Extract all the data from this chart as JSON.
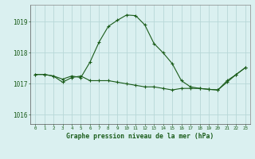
{
  "title": "Graphe pression niveau de la mer (hPa)",
  "background_color": "#daf0f0",
  "plot_bg_color": "#daf0f0",
  "grid_color": "#b8d8d8",
  "line_color": "#1a5c1a",
  "xlim": [
    -0.5,
    23.5
  ],
  "ylim": [
    1015.7,
    1019.55
  ],
  "yticks": [
    1016,
    1017,
    1018,
    1019
  ],
  "xticks": [
    0,
    1,
    2,
    3,
    4,
    5,
    6,
    7,
    8,
    9,
    10,
    11,
    12,
    13,
    14,
    15,
    16,
    17,
    18,
    19,
    20,
    21,
    22,
    23
  ],
  "series1_x": [
    0,
    1,
    2,
    3,
    4,
    5,
    6,
    7,
    8,
    9,
    10,
    11,
    12,
    13,
    14,
    15,
    16,
    17,
    18,
    19,
    20,
    21,
    22,
    23
  ],
  "series1_y": [
    1017.3,
    1017.3,
    1017.25,
    1017.15,
    1017.25,
    1017.2,
    1017.7,
    1018.35,
    1018.85,
    1019.05,
    1019.22,
    1019.2,
    1018.9,
    1018.3,
    1018.0,
    1017.65,
    1017.1,
    1016.9,
    1016.85,
    1016.82,
    1016.8,
    1017.05,
    1017.3,
    1017.52
  ],
  "series2_x": [
    0,
    1,
    2,
    3,
    4,
    5,
    6,
    7,
    8,
    9,
    10,
    11,
    12,
    13,
    14,
    15,
    16,
    17,
    18,
    19,
    20,
    21,
    22,
    23
  ],
  "series2_y": [
    1017.3,
    1017.3,
    1017.25,
    1017.05,
    1017.2,
    1017.25,
    1017.1,
    1017.1,
    1017.1,
    1017.05,
    1017.0,
    1016.95,
    1016.9,
    1016.9,
    1016.85,
    1016.8,
    1016.85,
    1016.85,
    1016.85,
    1016.82,
    1016.8,
    1017.1,
    1017.3,
    1017.52
  ]
}
